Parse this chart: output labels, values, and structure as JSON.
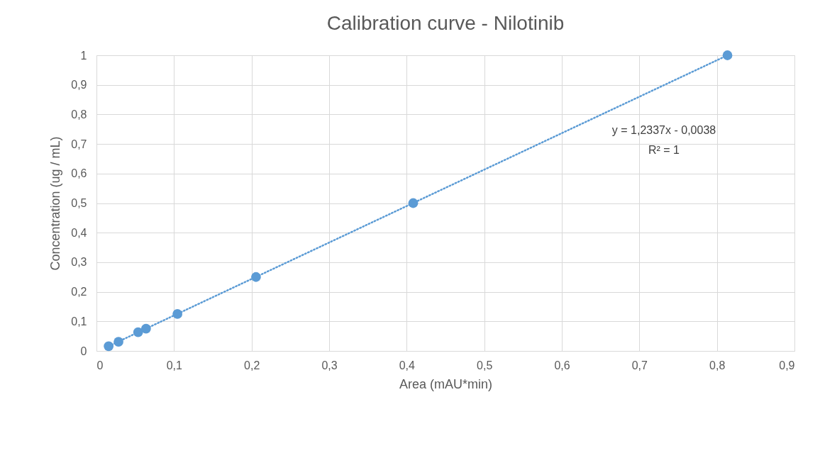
{
  "chart_data": {
    "type": "scatter",
    "title": "Calibration curve - Nilotinib",
    "xlabel": "Area (mAU*min)",
    "ylabel": "Concentration (ug / mL)",
    "annotations": [
      "y = 1,2337x - 0,0038",
      "R² = 1"
    ],
    "series": [
      {
        "color": "#5b9bd5",
        "marker": "circle",
        "x": [
          0.0157,
          0.0284,
          0.0537,
          0.0639,
          0.1044,
          0.2057,
          0.4084,
          0.8136
        ],
        "values": [
          0.016,
          0.031,
          0.063,
          0.075,
          0.125,
          0.25,
          0.5,
          1
        ]
      },
      {
        "type": "line",
        "color": "#5b9bd5",
        "marker": "none",
        "line_style": "dotted",
        "x": [
          0.0157,
          0.8136
        ],
        "values": [
          0.016,
          1
        ]
      }
    ],
    "xlim": [
      0,
      0.9
    ],
    "ylim": [
      0,
      1
    ],
    "xticks": [
      0,
      {
        "value": 0.1,
        "label": "0,1"
      },
      {
        "value": 0.2,
        "label": "0,2"
      },
      {
        "value": 0.3,
        "label": "0,3"
      },
      {
        "value": 0.4,
        "label": "0,4"
      },
      {
        "value": 0.5,
        "label": "0,5"
      },
      {
        "value": 0.6,
        "label": "0,6"
      },
      {
        "value": 0.7,
        "label": "0,7"
      },
      {
        "value": 0.8,
        "label": "0,8"
      },
      {
        "value": 0.9,
        "label": "0,9"
      }
    ],
    "yticks": [
      0,
      {
        "value": 0.1,
        "label": "0,1"
      },
      {
        "value": 0.2,
        "label": "0,2"
      },
      {
        "value": 0.3,
        "label": "0,3"
      },
      {
        "value": 0.4,
        "label": "0,4"
      },
      {
        "value": 0.5,
        "label": "0,5"
      },
      {
        "value": 0.6,
        "label": "0,6"
      },
      {
        "value": 0.7,
        "label": "0,7"
      },
      {
        "value": 0.8,
        "label": "0,8"
      },
      {
        "value": 0.9,
        "label": "0,9"
      },
      1
    ],
    "grid": true
  }
}
